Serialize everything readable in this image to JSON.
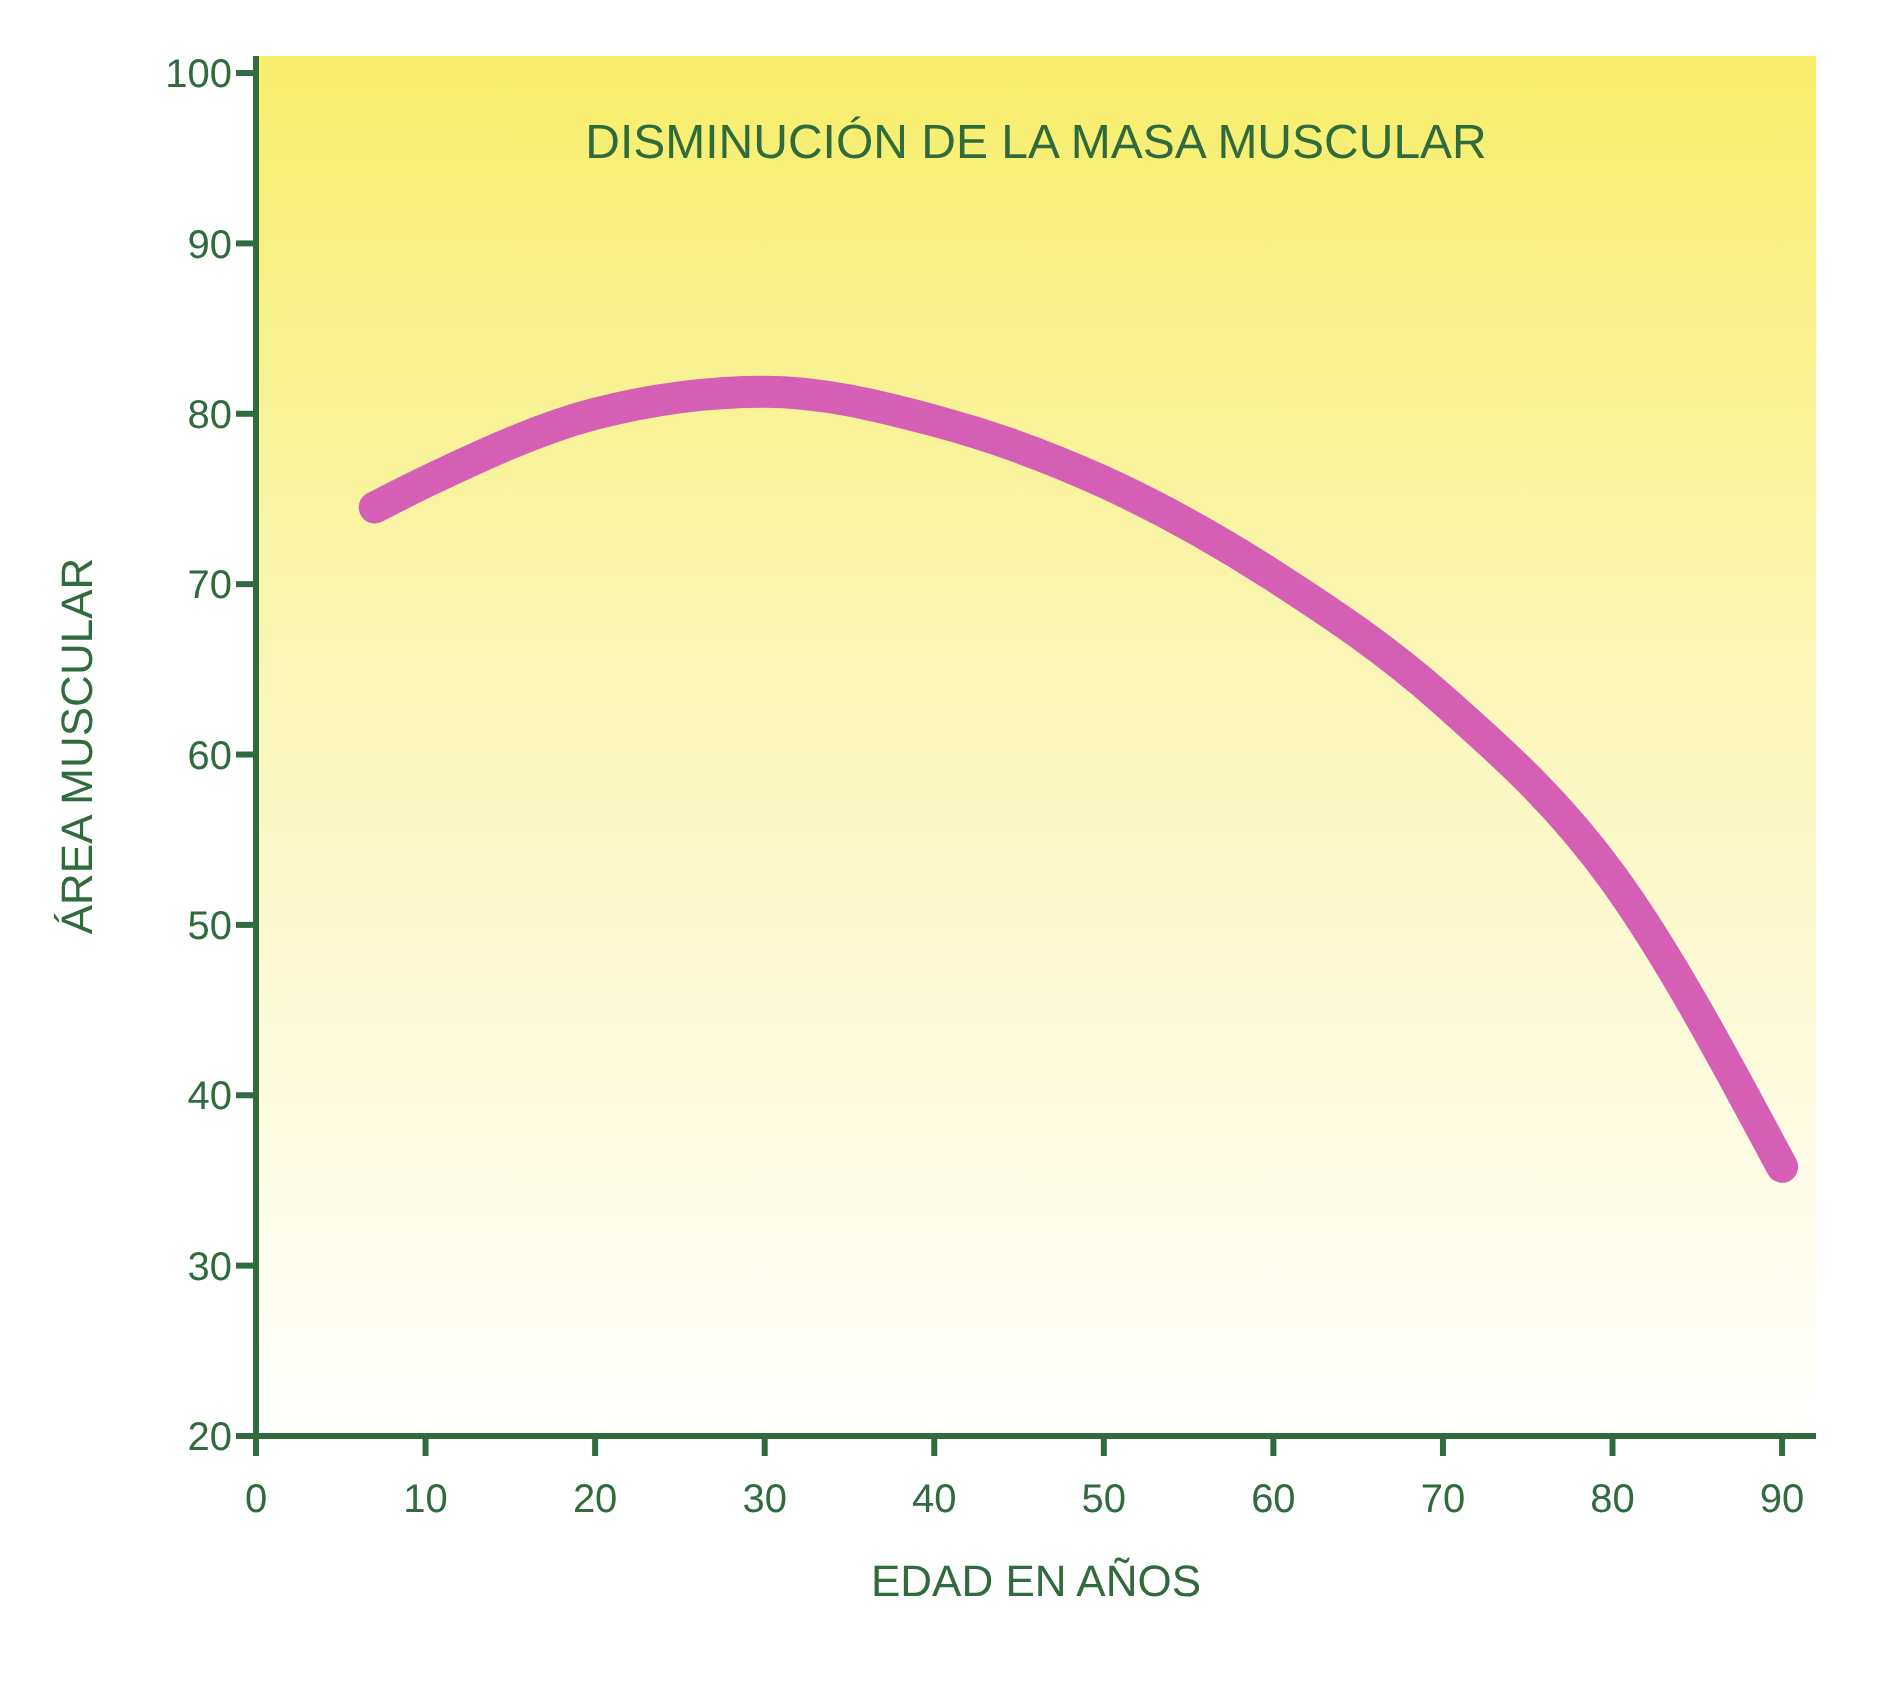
{
  "chart_data": {
    "type": "line",
    "title": "DISMINUCIÓN DE LA MASA MUSCULAR",
    "xlabel": "EDAD EN AÑOS",
    "ylabel": "ÁREA MUSCULAR",
    "x": [
      7,
      10,
      20,
      30,
      40,
      50,
      60,
      70,
      80,
      90
    ],
    "series": [
      {
        "color": "#d45fb4",
        "values": [
          74.5,
          76,
          80,
          81.3,
          79.6,
          76,
          70.5,
          63.2,
          52.8,
          35.8
        ]
      }
    ],
    "xlim": [
      0,
      92
    ],
    "xticks": [
      0,
      10,
      20,
      30,
      40,
      50,
      60,
      70,
      80,
      90
    ],
    "ylim": [
      20,
      101
    ],
    "yticks": [
      20,
      30,
      40,
      50,
      60,
      70,
      80,
      90,
      100
    ],
    "grid": false,
    "legend": false,
    "marker": "none",
    "line_style": "solid"
  }
}
